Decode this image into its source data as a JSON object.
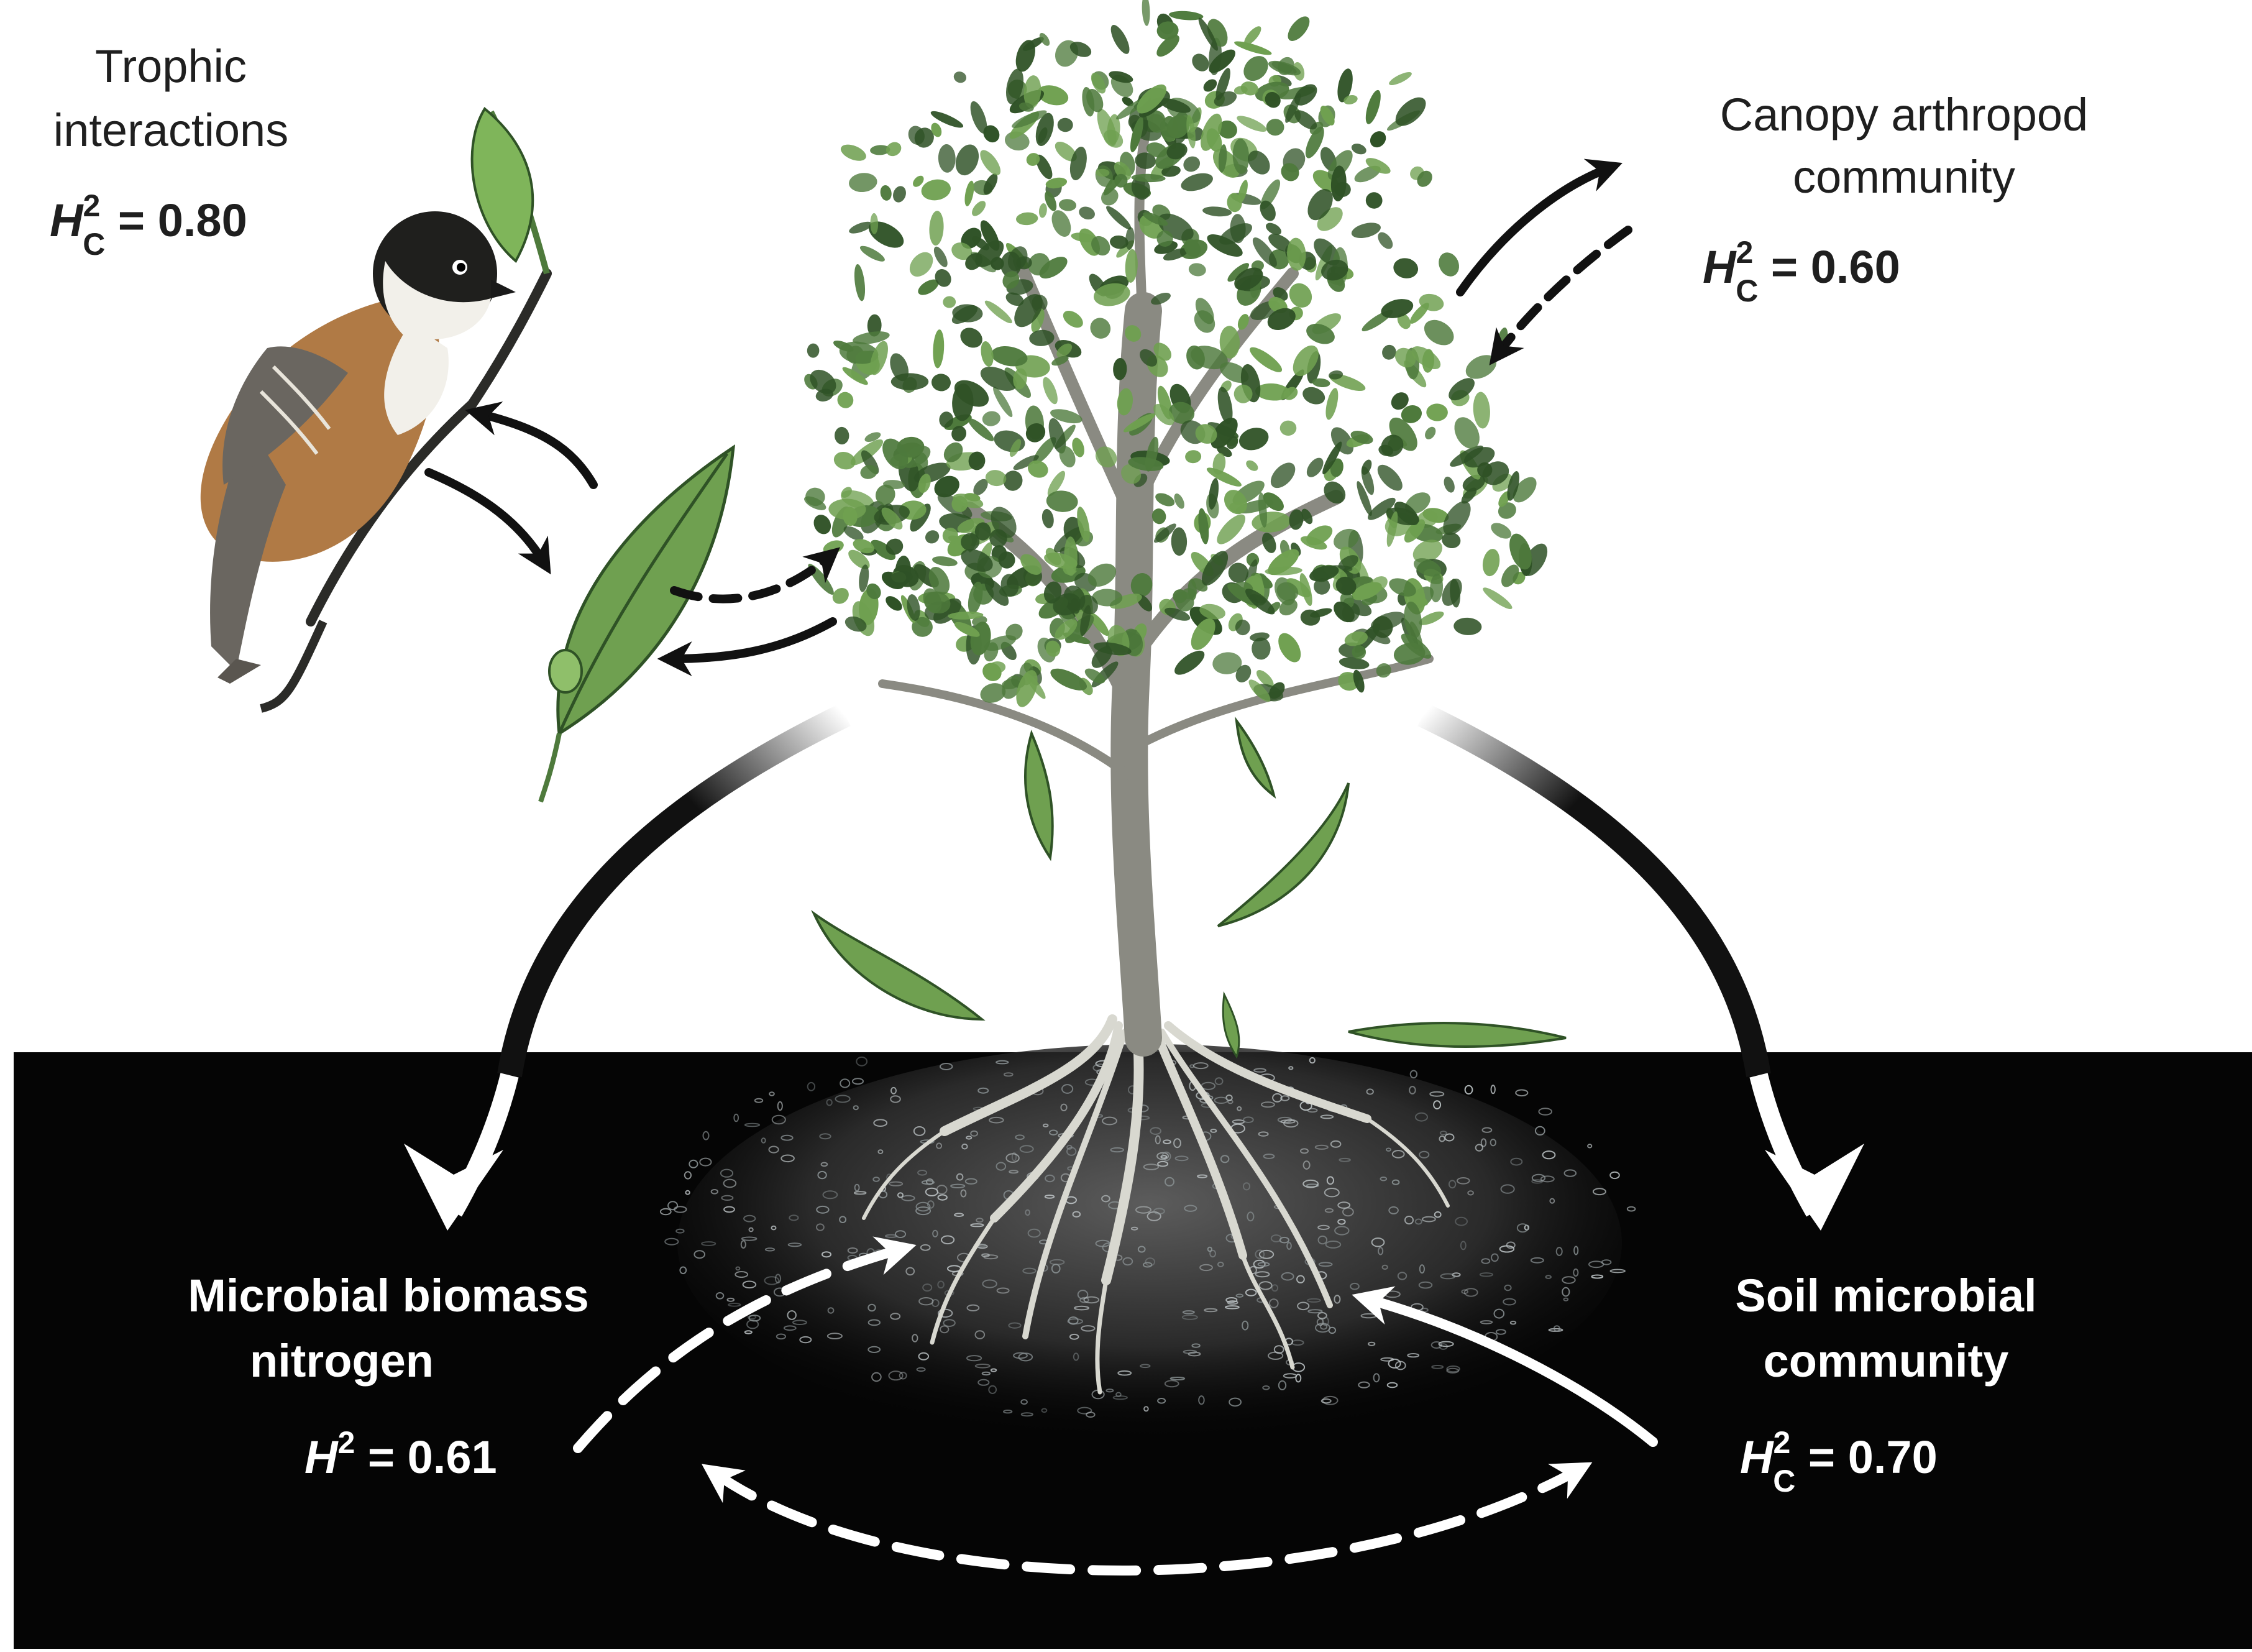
{
  "labels": {
    "trophic": {
      "line1": "Trophic",
      "line2": "interactions",
      "h_var": "H",
      "h_sup": "2",
      "h_sub": "C",
      "h_value": " = 0.80"
    },
    "canopy": {
      "line1": "Canopy arthropod",
      "line2": "community",
      "h_var": "H",
      "h_sup": "2",
      "h_sub": "C",
      "h_value": " = 0.60"
    },
    "microbial_biomass": {
      "line1": "Microbial biomass",
      "line2": "nitrogen",
      "h_var": "H",
      "h_sup": "2",
      "h_value": " = 0.61"
    },
    "soil_microbial": {
      "line1": "Soil microbial",
      "line2": "community",
      "h_var": "H",
      "h_sup": "2",
      "h_sub": "C",
      "h_value": " = 0.70"
    }
  },
  "colors": {
    "soil": "#050505",
    "foliage": "#4e7a3c",
    "foliage_dark": "#2f5226",
    "leaf": "#6fa050",
    "trunk": "#8a8a82",
    "bird_brown": "#b07a45",
    "bird_gray": "#6a6660",
    "arrow_dark": "#111111",
    "arrow_light": "#ffffff"
  }
}
